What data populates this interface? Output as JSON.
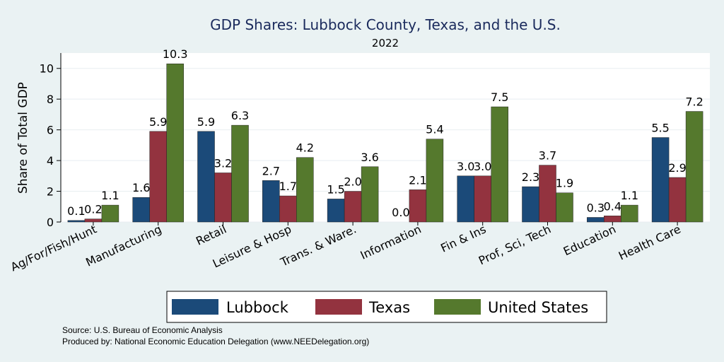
{
  "chart_data": {
    "type": "bar",
    "title": "GDP Shares: Lubbock County, Texas, and the U.S.",
    "subtitle": "2022",
    "ylabel": "Share of Total GDP",
    "xlabel": "",
    "ylim": [
      0,
      11
    ],
    "yticks": [
      0,
      2,
      4,
      6,
      8,
      10
    ],
    "grid": true,
    "legend_position": "bottom",
    "categories": [
      "Ag/For/Fish/Hunt",
      "Manufacturing",
      "Retail",
      "Leisure & Hosp",
      "Trans. & Ware.",
      "Information",
      "Fin & Ins",
      "Prof, Sci, Tech",
      "Education",
      "Health Care"
    ],
    "series": [
      {
        "name": "Lubbock",
        "color": "#1b4a79",
        "values": [
          0.1,
          1.6,
          5.9,
          2.7,
          1.5,
          0.0,
          3.0,
          2.3,
          0.3,
          5.5
        ]
      },
      {
        "name": "Texas",
        "color": "#93333f",
        "values": [
          0.2,
          5.9,
          3.2,
          1.7,
          2.0,
          2.1,
          3.0,
          3.7,
          0.4,
          2.9
        ]
      },
      {
        "name": "United States",
        "color": "#55792d",
        "values": [
          1.1,
          10.3,
          6.3,
          4.2,
          3.6,
          5.4,
          7.5,
          1.9,
          1.1,
          7.2
        ]
      }
    ]
  },
  "notes": {
    "source": "Source: U.S. Bureau of Economic Analysis",
    "produced": "Produced by: National Economic Education Delegation (www.NEEDelegation.org)"
  }
}
